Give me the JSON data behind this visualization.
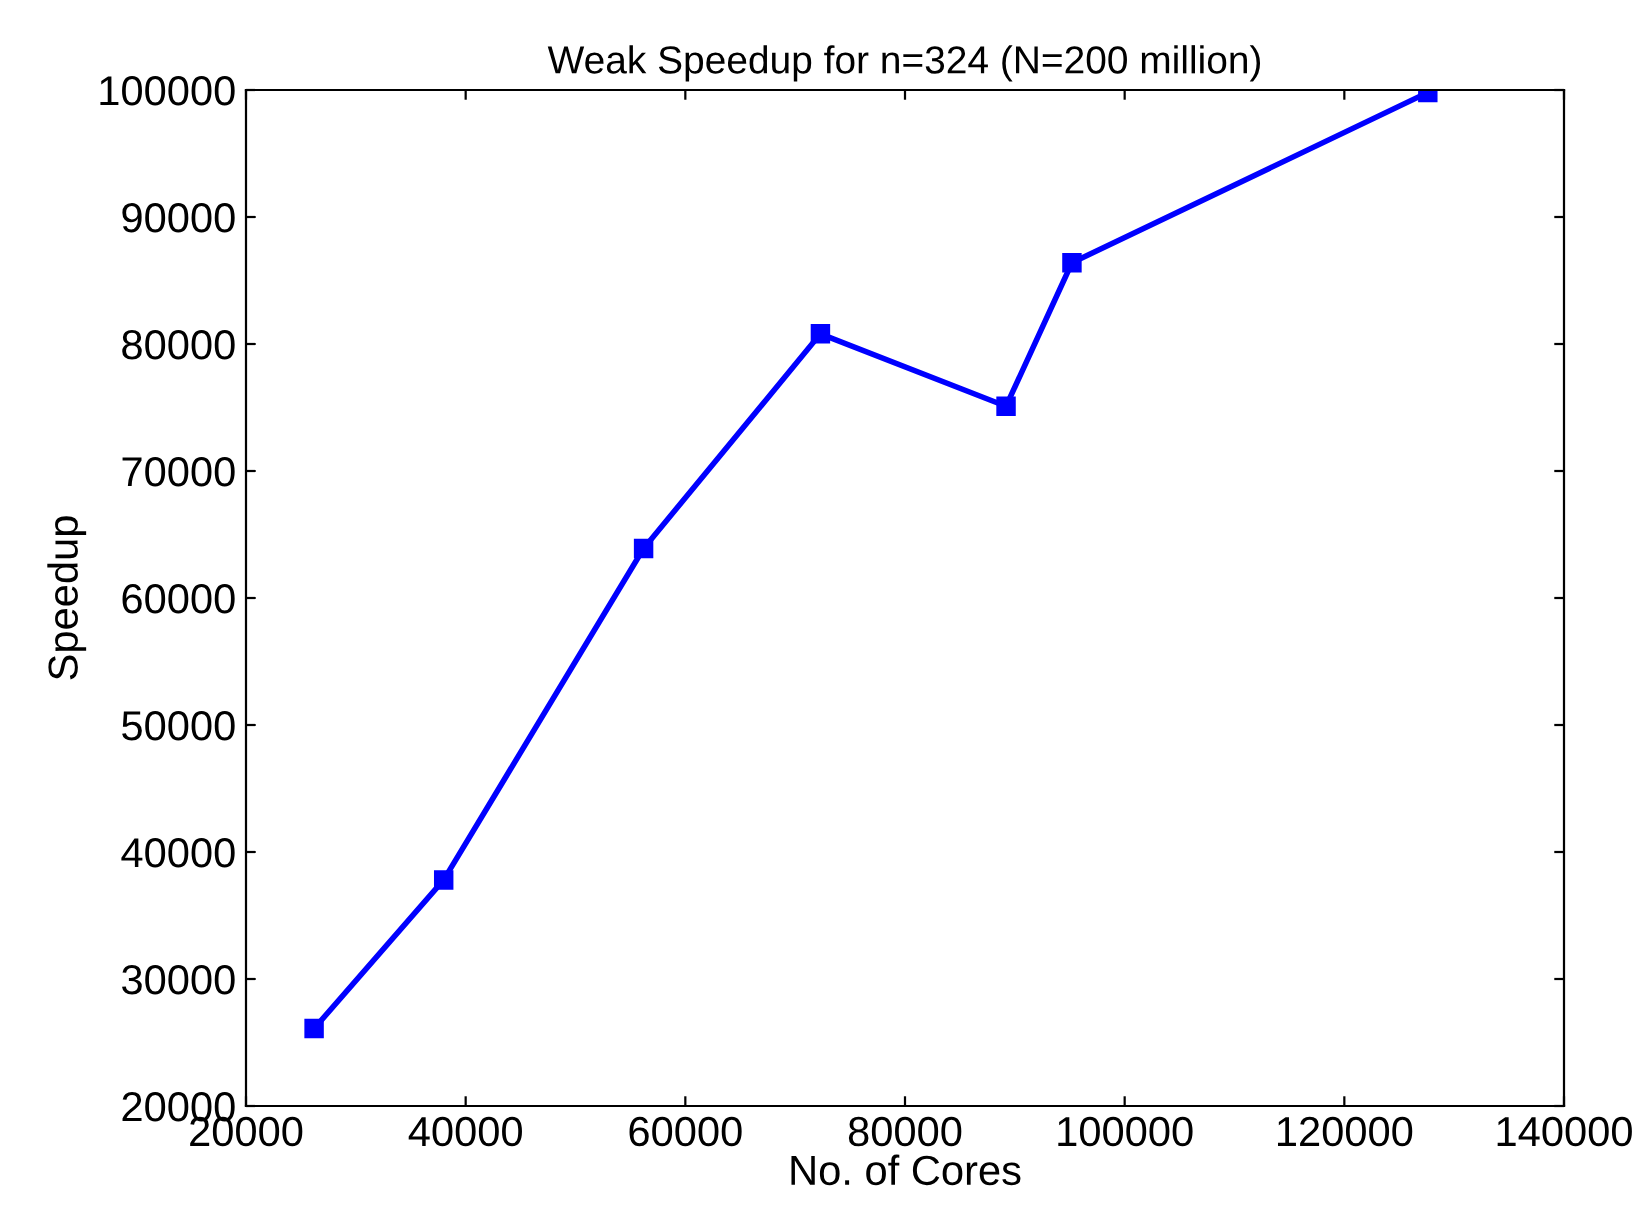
{
  "chart_data": {
    "type": "line",
    "title": "Weak Speedup for n=324 (N=200 million)",
    "xlabel": "No. of Cores",
    "ylabel": "Speedup",
    "x": [
      26200,
      38000,
      56200,
      72300,
      89200,
      95200,
      127600
    ],
    "series": [
      {
        "color": "#0000ff",
        "values": [
          26100,
          37800,
          63900,
          80800,
          75100,
          86400,
          99800
        ]
      }
    ],
    "xlim": [
      20000,
      140000
    ],
    "xticks": [
      20000,
      40000,
      60000,
      80000,
      100000,
      120000,
      140000
    ],
    "ylim": [
      20000,
      100000
    ],
    "yticks": [
      20000,
      30000,
      40000,
      50000,
      60000,
      70000,
      80000,
      90000,
      100000
    ],
    "marker": "square",
    "line_style": "solid",
    "grid": false,
    "legend": false
  }
}
